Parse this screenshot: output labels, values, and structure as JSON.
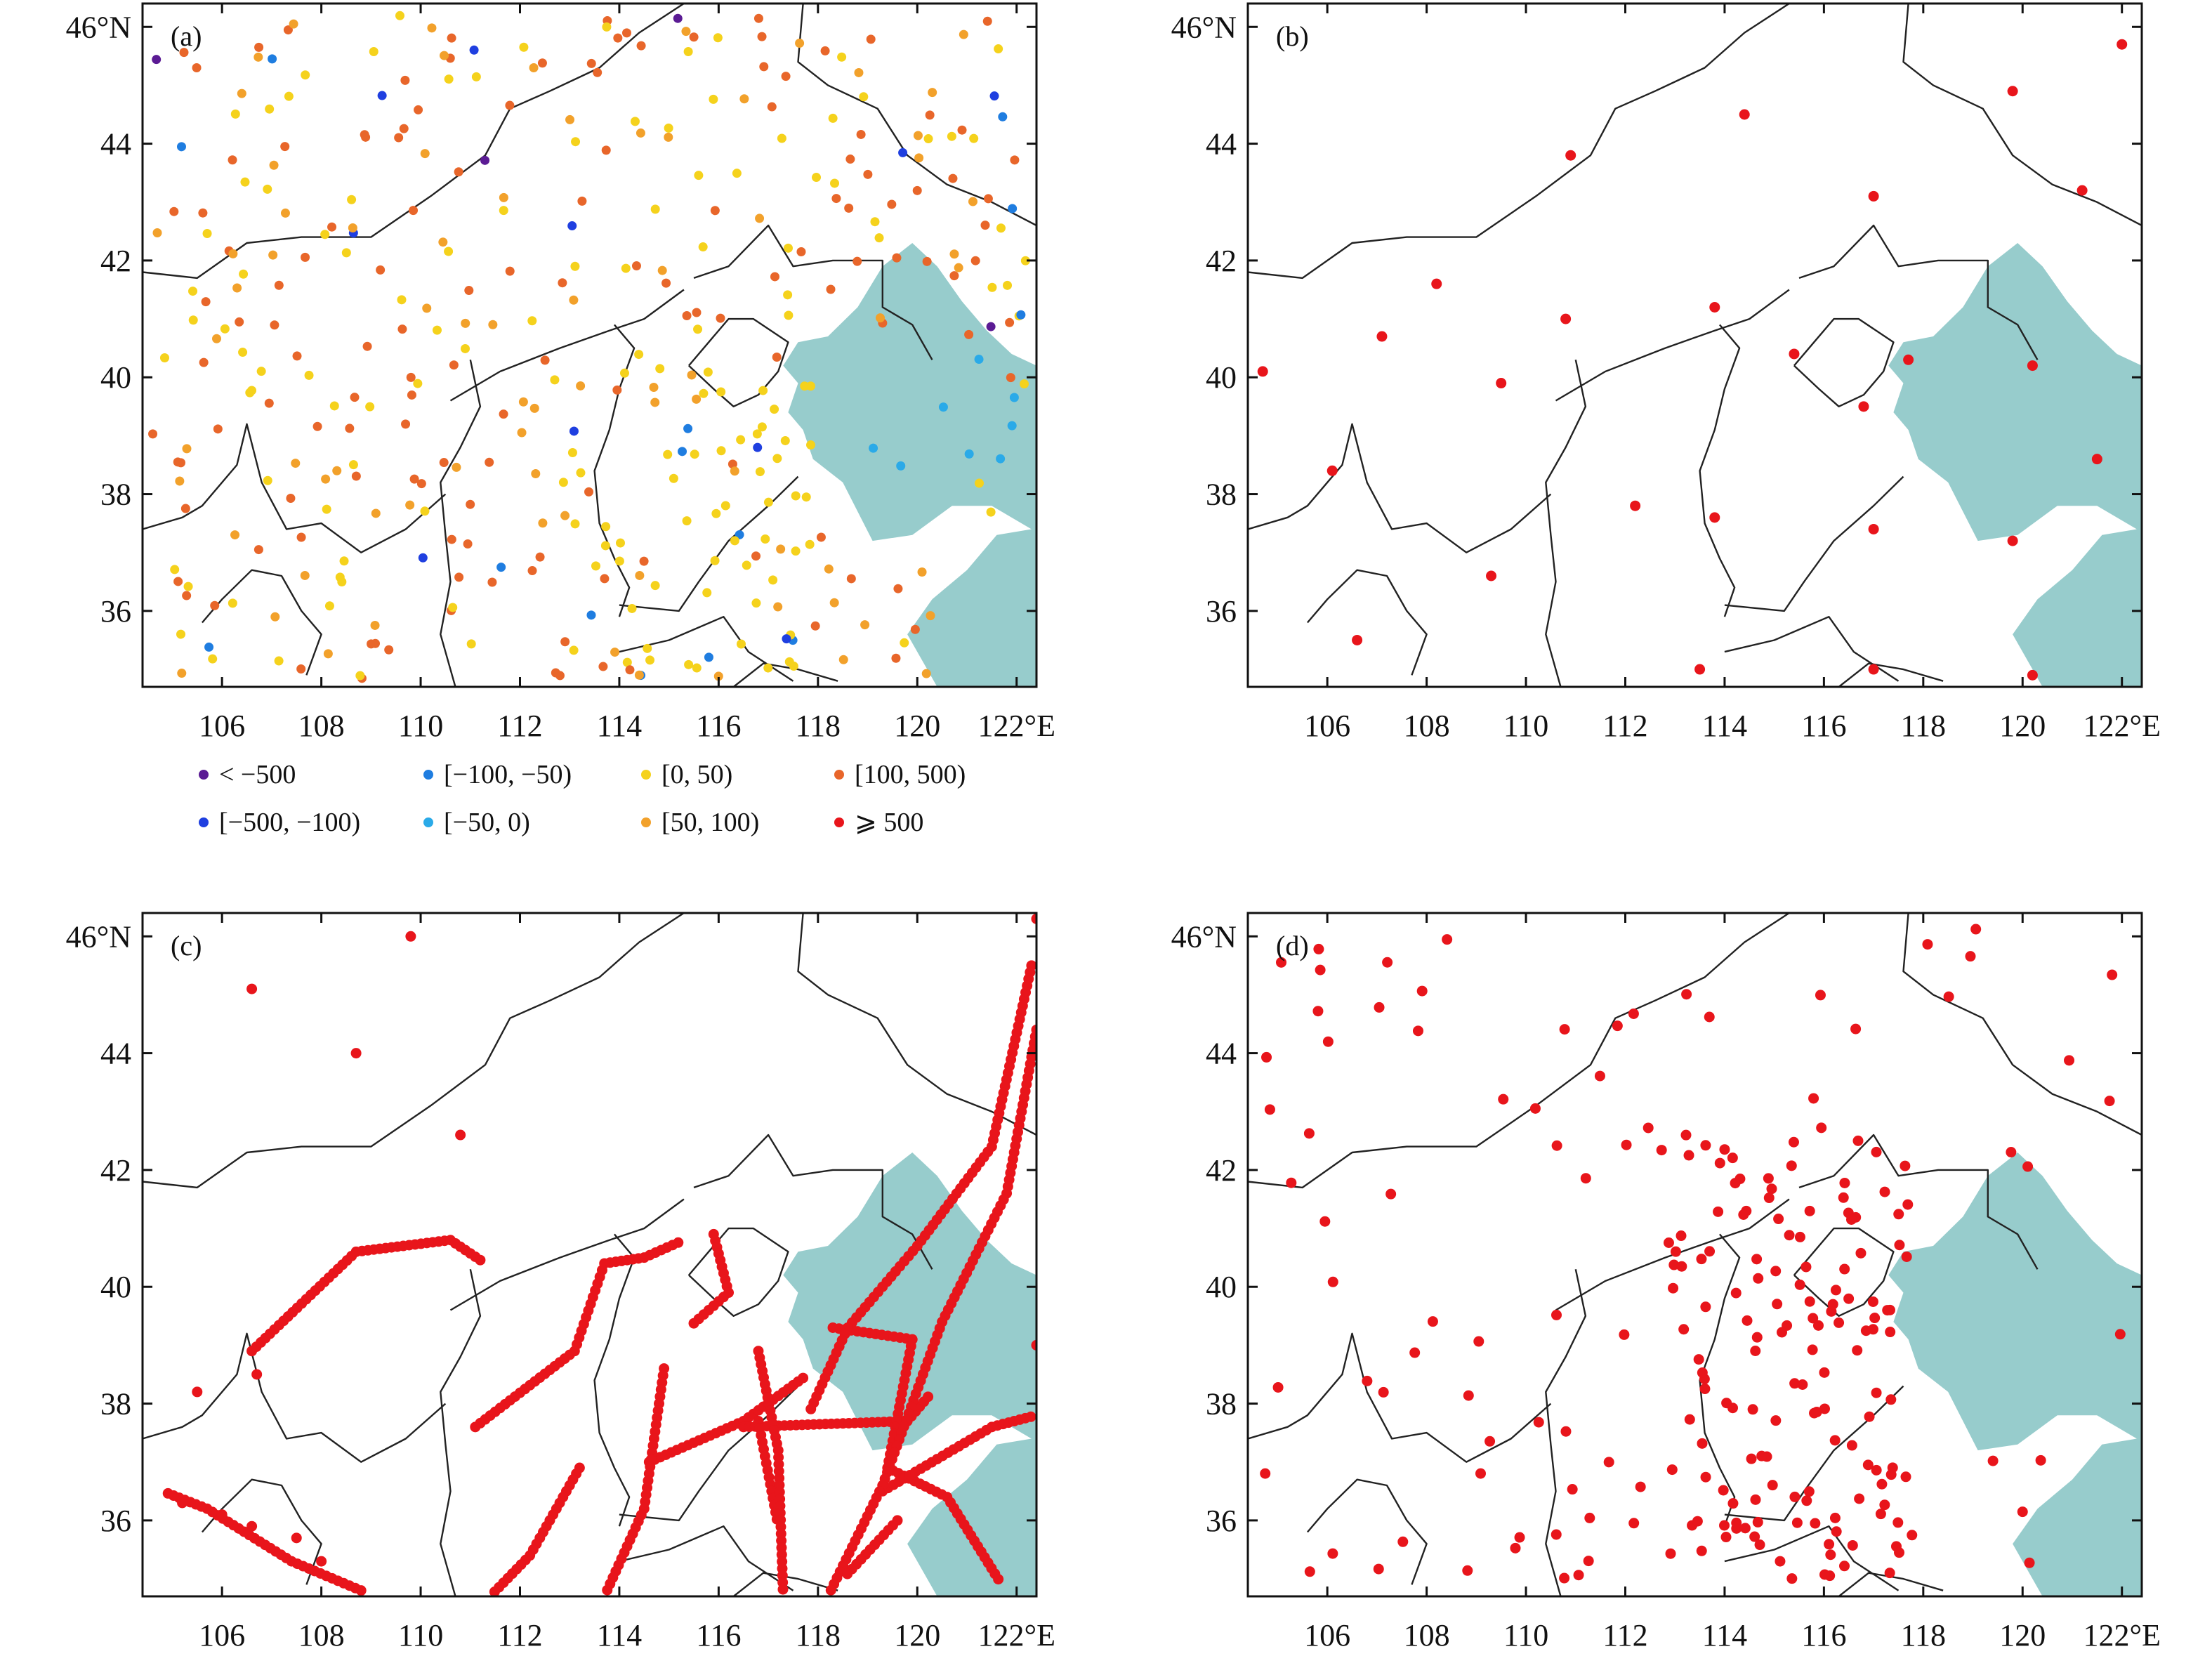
{
  "figure": {
    "panels": [
      {
        "id": "a",
        "label": "(a)"
      },
      {
        "id": "b",
        "label": "(b)"
      },
      {
        "id": "c",
        "label": "(c)"
      },
      {
        "id": "d",
        "label": "(d)"
      }
    ],
    "x_ticks": [
      "106",
      "108",
      "110",
      "112",
      "114",
      "116",
      "118",
      "120",
      "122°E"
    ],
    "x_tick_values": [
      106,
      108,
      110,
      112,
      114,
      116,
      118,
      120,
      122
    ],
    "y_ticks": [
      "46°N",
      "44",
      "42",
      "40",
      "38",
      "36"
    ],
    "y_tick_values": [
      46,
      44,
      42,
      40,
      38,
      36
    ],
    "extent": {
      "lon": [
        104.4,
        122.4
      ],
      "lat": [
        34.7,
        46.4
      ]
    },
    "sea_color": "#97cccc",
    "legend": [
      {
        "label": "< −500",
        "color": "#5b1b94"
      },
      {
        "label": "[−500, −100)",
        "color": "#1f3fe0"
      },
      {
        "label": "[−100, −50)",
        "color": "#1f7de0"
      },
      {
        "label": "[−50, 0)",
        "color": "#2aaae8"
      },
      {
        "label": "[0, 50)",
        "color": "#f5d21c"
      },
      {
        "label": "[50, 100)",
        "color": "#f2a12b"
      },
      {
        "label": "[100, 500)",
        "color": "#e8662a"
      },
      {
        "label": "⩾ 500",
        "color": "#e8151b"
      }
    ]
  }
}
